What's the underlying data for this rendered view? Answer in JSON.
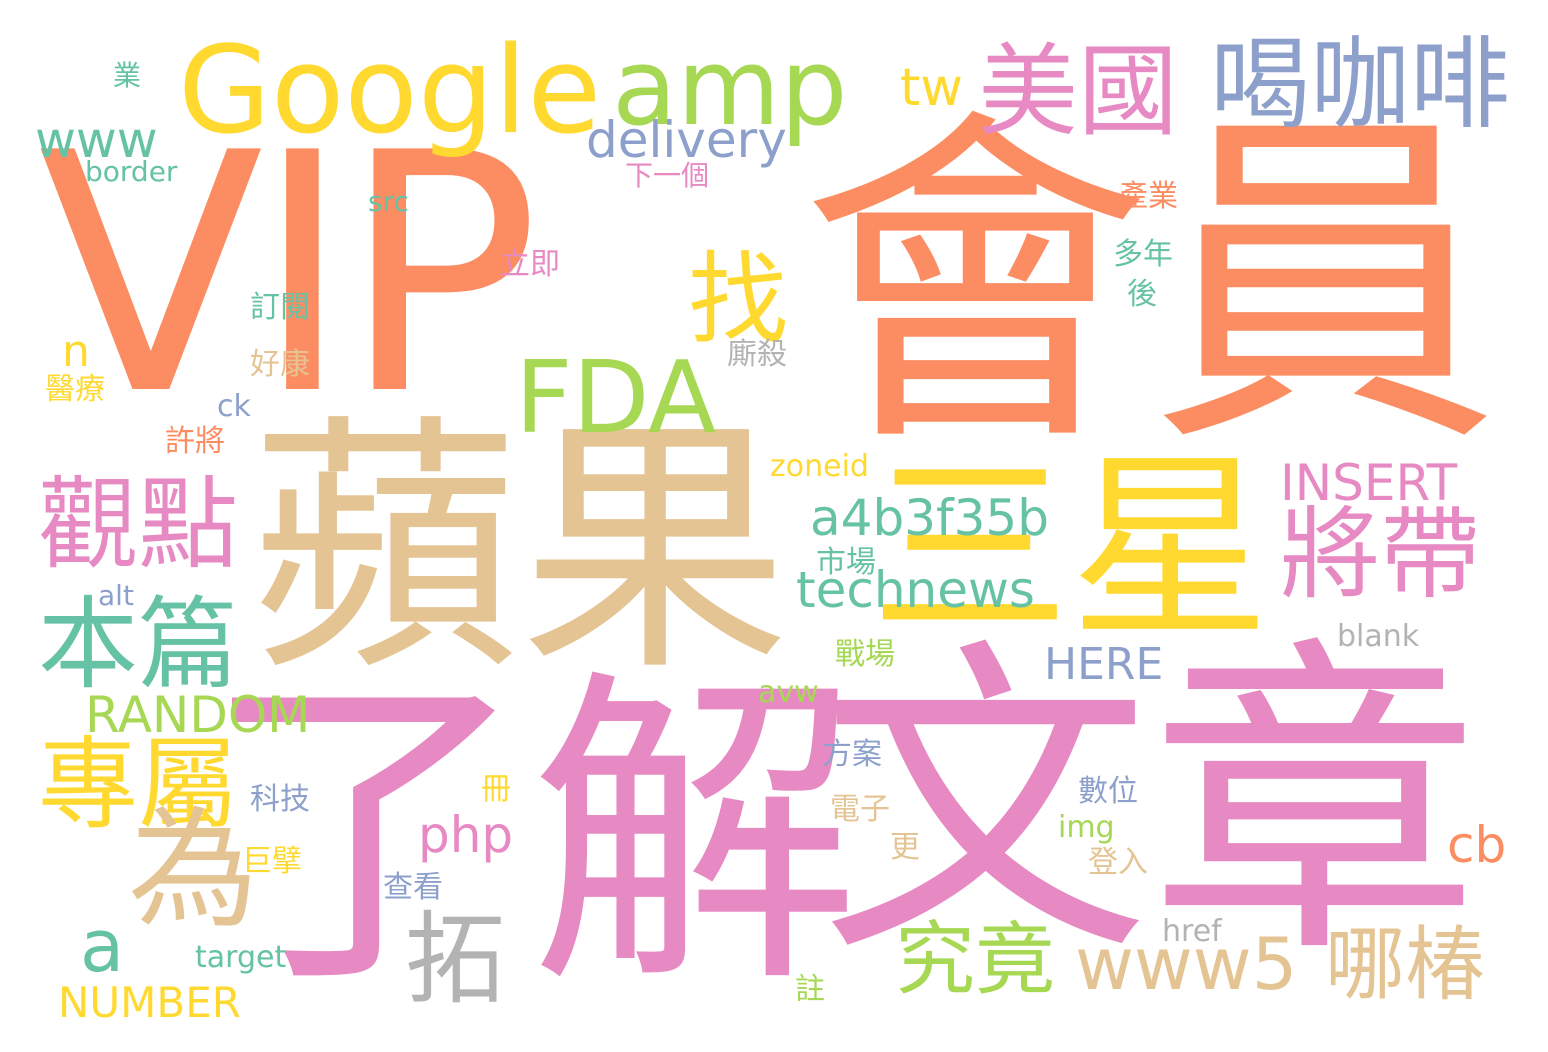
{
  "words": {
    "vip": "VIP",
    "hui": "會員",
    "ping": "蘋果",
    "liao": "了解",
    "wen": "文章",
    "san": "三星",
    "google": "Google",
    "amp": "amp",
    "mei": "美國",
    "he": "喝咖啡",
    "tw": "tw",
    "www1": "www",
    "delivery": "delivery",
    "ye": "業",
    "border": "border",
    "xia": "下一個",
    "src": "src",
    "chanye": "產業",
    "zhao": "找",
    "liji": "立即",
    "duonian": "多年",
    "hou": "後",
    "dingyue": "訂閱",
    "fda": "FDA",
    "n": "n",
    "haokang": "好康",
    "tingsha": "廝殺",
    "yiliao": "醫療",
    "ck": "ck",
    "xujiang": "許將",
    "zoneid": "zoneid",
    "insert": "INSERT",
    "guan": "觀點",
    "a4b": "a4b3f35b",
    "jiang": "將帶",
    "shichang": "市場",
    "technews": "technews",
    "ben": "本篇",
    "alt": "alt",
    "blank": "blank",
    "zhanchang": "戰場",
    "here": "HERE",
    "avw": "avw",
    "random": "RANDOM",
    "zhuan": "專屬",
    "fangan": "方案",
    "ce": "冊",
    "shuwei": "數位",
    "keji": "科技",
    "dianzi": "電子",
    "wei": "為",
    "php": "php",
    "img": "img",
    "cb": "cb",
    "geng": "更",
    "jubi": "巨擘",
    "denglu": "登入",
    "chakan": "查看",
    "tuo": "拓",
    "jiujing": "究竟",
    "a": "a",
    "href": "href",
    "www5": "www5",
    "nachun": "哪椿",
    "target": "target",
    "zhu": "註",
    "number": "NUMBER"
  },
  "palette": {
    "orange": "#fc8d62",
    "pink": "#e78ac3",
    "tan": "#e5c494",
    "yellow": "#ffd92f",
    "green": "#a6d854",
    "teal": "#66c2a5",
    "blue": "#8da0cb",
    "gray": "#b3b3b3"
  }
}
